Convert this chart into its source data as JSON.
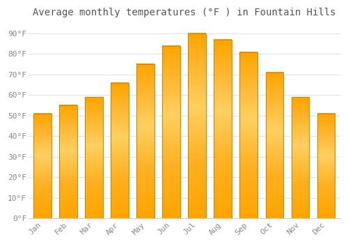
{
  "title": "Average monthly temperatures (°F ) in Fountain Hills",
  "months": [
    "Jan",
    "Feb",
    "Mar",
    "Apr",
    "May",
    "Jun",
    "Jul",
    "Aug",
    "Sep",
    "Oct",
    "Nov",
    "Dec"
  ],
  "values": [
    51,
    55,
    59,
    66,
    75,
    84,
    90,
    87,
    81,
    71,
    59,
    51
  ],
  "bar_color_main": "#FFA500",
  "bar_color_light": "#FFD060",
  "bar_edge_color": "#CC8800",
  "background_color": "#FFFFFF",
  "plot_bg_color": "#FFFFFF",
  "grid_color": "#E0E0E8",
  "axis_color": "#333333",
  "ylim": [
    0,
    95
  ],
  "yticks": [
    0,
    10,
    20,
    30,
    40,
    50,
    60,
    70,
    80,
    90
  ],
  "ytick_labels": [
    "0°F",
    "10°F",
    "20°F",
    "30°F",
    "40°F",
    "50°F",
    "60°F",
    "70°F",
    "80°F",
    "90°F"
  ],
  "title_fontsize": 10,
  "tick_fontsize": 8,
  "tick_font_color": "#888888",
  "title_color": "#555555",
  "font_family": "monospace",
  "bar_width": 0.7
}
